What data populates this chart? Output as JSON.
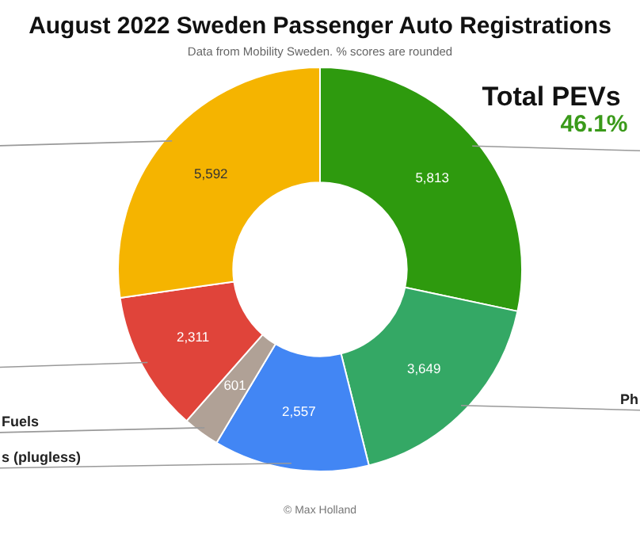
{
  "chart_data": {
    "type": "donut",
    "title": "August 2022 Sweden Passenger Auto Registrations",
    "subtitle": "Data from Mobility Sweden. % scores are rounded",
    "categories": [
      null,
      "Ph",
      "s (plugless)",
      "Fuels",
      null,
      null
    ],
    "values": [
      5813,
      3649,
      2557,
      601,
      2311,
      5592
    ],
    "colors": [
      "#2e9a0e",
      "#34a865",
      "#4286f4",
      "#b0a196",
      "#e0443a",
      "#f5b400"
    ],
    "value_labels": [
      "5,813",
      "3,649",
      "2,557",
      "601",
      "2,311",
      "5,592"
    ],
    "legend": false,
    "annotations": [
      {
        "text": "Total PEVs"
      },
      {
        "text": "46.1%"
      },
      {
        "text": "© Max Holland"
      }
    ]
  }
}
